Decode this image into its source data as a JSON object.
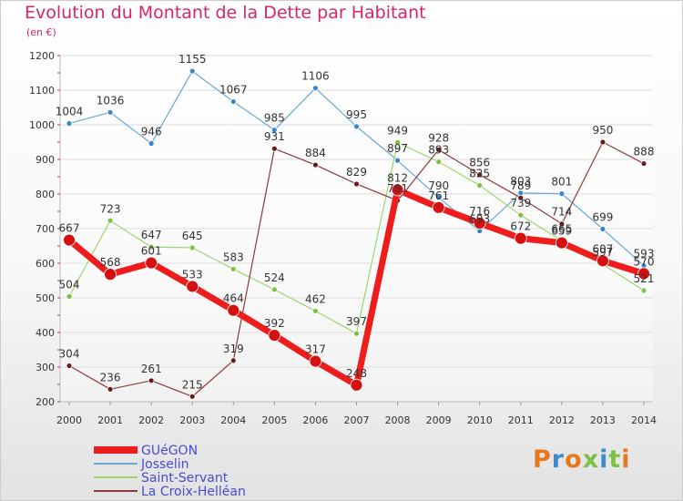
{
  "title": "Evolution du Montant de la Dette par Habitant",
  "subtitle": "(en €)",
  "logo_text": "Proxiti",
  "colors": {
    "title": "#d6246e",
    "axis_text": "#333333",
    "grid": "#dddddd",
    "logo_letters": [
      "#e8781e",
      "#3f8ccc",
      "#e8781e",
      "#7cc142",
      "#3f8ccc",
      "#7cc142",
      "#e8781e"
    ]
  },
  "chart_data": {
    "type": "line",
    "title": "Evolution du Montant de la Dette par Habitant",
    "ylabel": "(en €)",
    "xlabel": "",
    "ylim": [
      200,
      1200
    ],
    "yticks": [
      200,
      300,
      400,
      500,
      600,
      700,
      800,
      900,
      1000,
      1100,
      1200
    ],
    "x": [
      "2000",
      "2001",
      "2002",
      "2003",
      "2004",
      "2005",
      "2006",
      "2007",
      "2008",
      "2009",
      "2010",
      "2011",
      "2012",
      "2013",
      "2014"
    ],
    "grid": "horizontal",
    "legend_position": "bottom-left",
    "series": [
      {
        "name": "Josselin",
        "color": "#6aa7d6",
        "marker": "#3b86c8",
        "values": [
          1004,
          1036,
          946,
          1155,
          1067,
          985,
          1106,
          995,
          897,
          790,
          693,
          803,
          801,
          699,
          593
        ],
        "labels": [
          "1004",
          "1036",
          "946",
          "1155",
          "1067",
          "985",
          "1106",
          "995",
          "897",
          "790",
          "693",
          "803",
          "801",
          "699",
          "593"
        ]
      },
      {
        "name": "Saint-Servant",
        "color": "#9ad66e",
        "marker": "#7cc142",
        "values": [
          504,
          723,
          647,
          645,
          583,
          524,
          462,
          397,
          949,
          893,
          825,
          739,
          665,
          597,
          521
        ],
        "labels": [
          "504",
          "723",
          "647",
          "645",
          "583",
          "524",
          "462",
          "397",
          "949",
          "893",
          "825",
          "739",
          "665",
          "597",
          "521"
        ]
      },
      {
        "name": "La Croix-Helléan",
        "color": "#8c3a3a",
        "marker": "#6b1a1a",
        "values": [
          304,
          236,
          261,
          215,
          319,
          931,
          884,
          829,
          781,
          928,
          856,
          789,
          714,
          950,
          888
        ],
        "labels": [
          "304",
          "236",
          "261",
          "215",
          "319",
          "931",
          "884",
          "829",
          "781",
          "928",
          "856",
          "789",
          "714",
          "950",
          "888"
        ]
      },
      {
        "name": "GUéGON",
        "color": "#ee1c1c",
        "marker": "#d61010",
        "values": [
          667,
          568,
          601,
          533,
          464,
          392,
          317,
          248,
          812,
          761,
          716,
          672,
          659,
          607,
          570
        ],
        "labels": [
          "667",
          "568",
          "601",
          "533",
          "464",
          "392",
          "317",
          "248",
          "812",
          "761",
          "716",
          "672",
          "659",
          "607",
          "570"
        ]
      }
    ],
    "legend_order": [
      "GUéGON",
      "Josselin",
      "Saint-Servant",
      "La Croix-Helléan"
    ]
  }
}
